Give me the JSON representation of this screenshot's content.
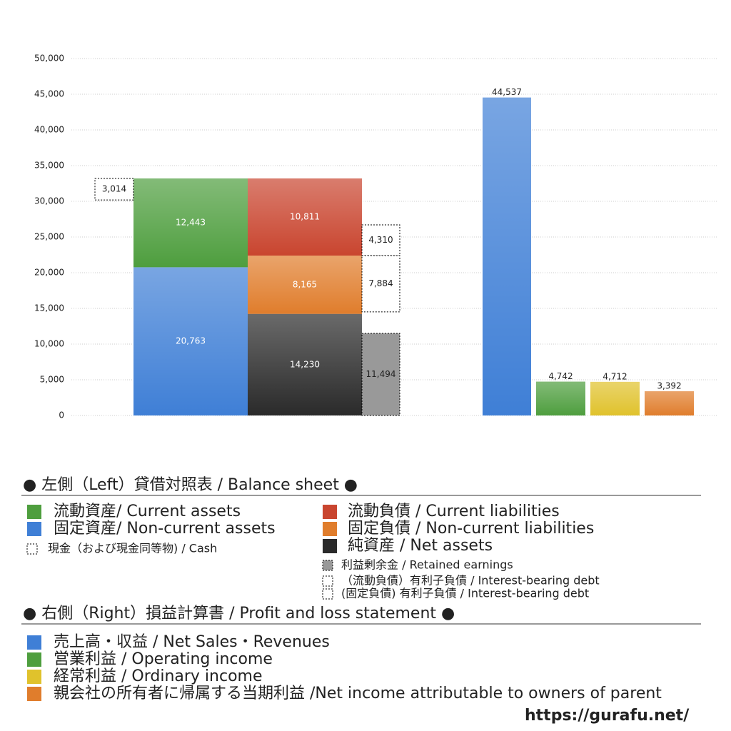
{
  "chart_data": {
    "type": "bar",
    "ylim": [
      0,
      50000
    ],
    "yticks": [
      0,
      {
        "value": 5000,
        "label": "5,000"
      },
      {
        "value": 10000,
        "label": "10,000"
      },
      {
        "value": 15000,
        "label": "15,000"
      },
      {
        "value": 20000,
        "label": "20,000"
      },
      {
        "value": 25000,
        "label": "25,000"
      },
      {
        "value": 30000,
        "label": "30,000"
      },
      {
        "value": 35000,
        "label": "35,000"
      },
      {
        "value": 40000,
        "label": "40,000"
      },
      {
        "value": 45000,
        "label": "45,000"
      },
      {
        "value": 50000,
        "label": "50,000"
      }
    ],
    "grid": true,
    "sections": [
      {
        "title": "● 左側（Left）貸借対照表 / Balance sheet ●",
        "series": [
          {
            "name": "流動資産/ Current assets",
            "color": "#4e9e3e",
            "values": [
              12443
            ],
            "value_labels": [
              "12,443"
            ]
          },
          {
            "name": "固定資産/ Non-current assets",
            "color": "#3f7fd6",
            "values": [
              20763
            ],
            "value_labels": [
              "20,763"
            ]
          },
          {
            "name": "現金（および現金同等物) / Cash",
            "color": "#ffffff",
            "border": "dotted",
            "values": [
              3014
            ],
            "value_labels": [
              "3,014"
            ]
          },
          {
            "name": "流動負債 /  Current liabilities",
            "color": "#c9452f",
            "values": [
              10811
            ],
            "value_labels": [
              "10,811"
            ]
          },
          {
            "name": "固定負債 / Non-current liabilities",
            "color": "#e07d2c",
            "values": [
              8165
            ],
            "value_labels": [
              "8,165"
            ]
          },
          {
            "name": "純資産 / Net assets",
            "color": "#2a2a2a",
            "values": [
              14230
            ],
            "value_labels": [
              "14,230"
            ]
          },
          {
            "name": "利益剰余金 / Retained earnings",
            "color": "#999999",
            "border": "dotted",
            "values": [
              11494
            ],
            "value_labels": [
              "11,494"
            ]
          },
          {
            "name": "（流動負債）有利子負債 / Interest-bearing debt",
            "color": "#ffffff",
            "border": "dotted",
            "values": [
              4310
            ],
            "value_labels": [
              "4,310"
            ]
          },
          {
            "name": "(固定負債) 有利子負債 / Interest-bearing debt",
            "color": "#ffffff",
            "border": "dotted",
            "values": [
              7884
            ],
            "value_labels": [
              "7,884"
            ]
          }
        ]
      },
      {
        "title": "● 右側（Right）損益計算書 / Profit and loss statement ●",
        "series": [
          {
            "name": "売上高・収益 / Net Sales・Revenues",
            "color": "#3f7fd6",
            "values": [
              44537
            ],
            "value_labels": [
              "44,537"
            ]
          },
          {
            "name": "営業利益 / Operating income",
            "color": "#4e9e3e",
            "values": [
              4742
            ],
            "value_labels": [
              "4,742"
            ]
          },
          {
            "name": "経常利益 / Ordinary income",
            "color": "#e0c22c",
            "values": [
              4712
            ],
            "value_labels": [
              "4,712"
            ]
          },
          {
            "name": "親会社の所有者に帰属する当期利益 /Net income attributable to owners of parent",
            "color": "#e07d2c",
            "values": [
              3392
            ],
            "value_labels": [
              "3,392"
            ]
          }
        ]
      }
    ],
    "footer": "https://gurafu.net/"
  }
}
